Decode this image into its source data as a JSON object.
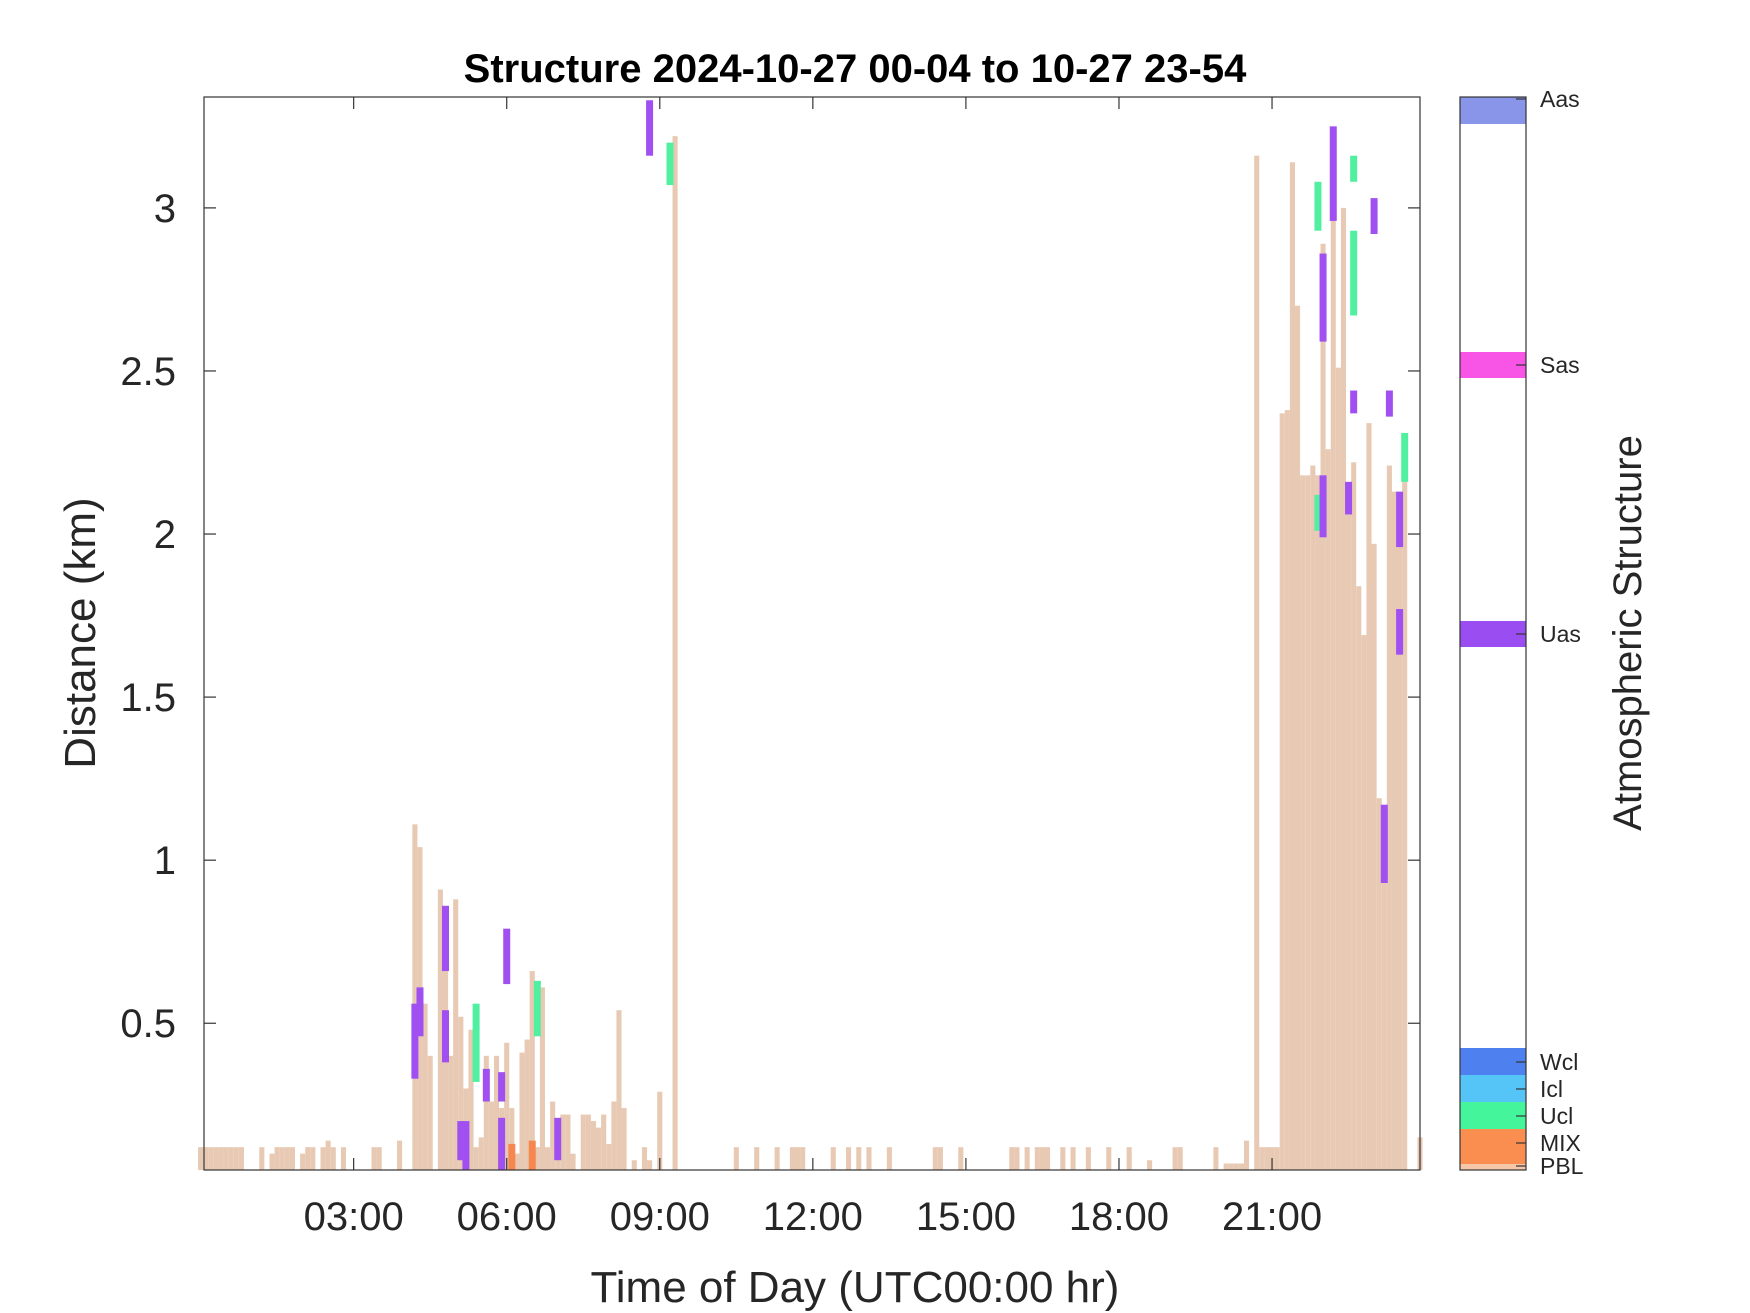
{
  "chart_data": {
    "type": "bar",
    "title": "Structure 2024-10-27 00-04 to 10-27 23-54",
    "xlabel": "Time of Day (UTC00:00 hr)",
    "ylabel": "Distance (km)",
    "xlim": [
      "00:04",
      "23:54"
    ],
    "ylim": [
      0.05,
      3.34
    ],
    "grid": false,
    "x_ticks": [
      "03:00",
      "06:00",
      "09:00",
      "12:00",
      "15:00",
      "18:00",
      "21:00"
    ],
    "y_ticks": [
      "0.5",
      "1",
      "1.5",
      "2",
      "2.5",
      "3"
    ],
    "x_unit": "hours of day",
    "pbl_height_km": [
      [
        0.0,
        0.12
      ],
      [
        0.1,
        0.12
      ],
      [
        0.2,
        0.12
      ],
      [
        0.3,
        0.12
      ],
      [
        0.4,
        0.12
      ],
      [
        0.5,
        0.12
      ],
      [
        0.6,
        0.12
      ],
      [
        0.7,
        0.12
      ],
      [
        0.8,
        0.12
      ],
      [
        1.2,
        0.12
      ],
      [
        1.4,
        0.1
      ],
      [
        1.5,
        0.12
      ],
      [
        1.6,
        0.12
      ],
      [
        1.7,
        0.12
      ],
      [
        1.8,
        0.12
      ],
      [
        2.0,
        0.1
      ],
      [
        2.1,
        0.12
      ],
      [
        2.2,
        0.12
      ],
      [
        2.4,
        0.12
      ],
      [
        2.5,
        0.14
      ],
      [
        2.6,
        0.12
      ],
      [
        2.8,
        0.12
      ],
      [
        3.4,
        0.12
      ],
      [
        3.5,
        0.12
      ],
      [
        3.9,
        0.14
      ],
      [
        4.2,
        1.11
      ],
      [
        4.3,
        1.04
      ],
      [
        4.4,
        0.56
      ],
      [
        4.5,
        0.4
      ],
      [
        4.7,
        0.91
      ],
      [
        4.8,
        0.86
      ],
      [
        4.9,
        0.4
      ],
      [
        5.0,
        0.88
      ],
      [
        5.1,
        0.52
      ],
      [
        5.2,
        0.3
      ],
      [
        5.3,
        0.48
      ],
      [
        5.4,
        0.12
      ],
      [
        5.5,
        0.15
      ],
      [
        5.6,
        0.4
      ],
      [
        5.7,
        0.26
      ],
      [
        5.8,
        0.4
      ],
      [
        5.9,
        0.24
      ],
      [
        6.0,
        0.44
      ],
      [
        6.1,
        0.24
      ],
      [
        6.2,
        0.1
      ],
      [
        6.3,
        0.41
      ],
      [
        6.4,
        0.45
      ],
      [
        6.5,
        0.66
      ],
      [
        6.6,
        0.12
      ],
      [
        6.7,
        0.61
      ],
      [
        6.8,
        0.12
      ],
      [
        6.9,
        0.26
      ],
      [
        7.0,
        0.12
      ],
      [
        7.1,
        0.22
      ],
      [
        7.2,
        0.22
      ],
      [
        7.3,
        0.1
      ],
      [
        7.5,
        0.22
      ],
      [
        7.6,
        0.22
      ],
      [
        7.7,
        0.2
      ],
      [
        7.8,
        0.18
      ],
      [
        7.9,
        0.22
      ],
      [
        8.0,
        0.13
      ],
      [
        8.1,
        0.26
      ],
      [
        8.2,
        0.54
      ],
      [
        8.3,
        0.24
      ],
      [
        8.5,
        0.08
      ],
      [
        8.7,
        0.12
      ],
      [
        8.8,
        0.08
      ],
      [
        9.0,
        0.29
      ],
      [
        9.3,
        3.22
      ],
      [
        10.5,
        0.12
      ],
      [
        10.9,
        0.12
      ],
      [
        11.3,
        0.12
      ],
      [
        11.6,
        0.12
      ],
      [
        11.7,
        0.12
      ],
      [
        11.8,
        0.12
      ],
      [
        12.4,
        0.12
      ],
      [
        12.7,
        0.12
      ],
      [
        12.9,
        0.12
      ],
      [
        13.1,
        0.12
      ],
      [
        13.5,
        0.12
      ],
      [
        14.4,
        0.12
      ],
      [
        14.5,
        0.12
      ],
      [
        14.9,
        0.12
      ],
      [
        15.9,
        0.12
      ],
      [
        16.0,
        0.12
      ],
      [
        16.2,
        0.12
      ],
      [
        16.4,
        0.12
      ],
      [
        16.5,
        0.12
      ],
      [
        16.6,
        0.12
      ],
      [
        16.9,
        0.12
      ],
      [
        17.1,
        0.12
      ],
      [
        17.4,
        0.12
      ],
      [
        17.8,
        0.12
      ],
      [
        18.2,
        0.12
      ],
      [
        18.6,
        0.08
      ],
      [
        19.1,
        0.12
      ],
      [
        19.2,
        0.12
      ],
      [
        19.9,
        0.12
      ],
      [
        20.1,
        0.07
      ],
      [
        20.2,
        0.07
      ],
      [
        20.3,
        0.07
      ],
      [
        20.4,
        0.07
      ],
      [
        20.5,
        0.14
      ],
      [
        20.7,
        3.16
      ],
      [
        20.8,
        0.12
      ],
      [
        20.9,
        0.12
      ],
      [
        21.0,
        0.12
      ],
      [
        21.1,
        0.12
      ],
      [
        21.2,
        2.37
      ],
      [
        21.3,
        2.38
      ],
      [
        21.4,
        3.14
      ],
      [
        21.5,
        2.7
      ],
      [
        21.6,
        2.18
      ],
      [
        21.7,
        2.18
      ],
      [
        21.8,
        2.21
      ],
      [
        21.9,
        2.18
      ],
      [
        22.0,
        2.89
      ],
      [
        22.1,
        2.26
      ],
      [
        22.2,
        3.18
      ],
      [
        22.3,
        2.51
      ],
      [
        22.4,
        3.0
      ],
      [
        22.5,
        2.06
      ],
      [
        22.6,
        2.22
      ],
      [
        22.7,
        1.84
      ],
      [
        22.8,
        1.69
      ],
      [
        22.9,
        2.34
      ],
      [
        23.0,
        1.97
      ],
      [
        23.1,
        1.19
      ],
      [
        23.2,
        1.17
      ],
      [
        23.3,
        2.21
      ],
      [
        23.4,
        2.13
      ],
      [
        23.5,
        2.08
      ],
      [
        23.6,
        2.16
      ],
      [
        23.9,
        0.15
      ]
    ],
    "mixing_layer_segments_km": [
      [
        6.1,
        0.05,
        0.13
      ],
      [
        6.5,
        0.05,
        0.14
      ]
    ],
    "uas_segments_km": [
      [
        4.2,
        0.33,
        0.56
      ],
      [
        4.3,
        0.46,
        0.61
      ],
      [
        4.8,
        0.66,
        0.86
      ],
      [
        4.8,
        0.38,
        0.54
      ],
      [
        5.1,
        0.08,
        0.2
      ],
      [
        5.2,
        0.05,
        0.2
      ],
      [
        5.6,
        0.26,
        0.36
      ],
      [
        5.9,
        0.05,
        0.21
      ],
      [
        5.9,
        0.26,
        0.35
      ],
      [
        6.0,
        0.62,
        0.79
      ],
      [
        7.0,
        0.08,
        0.21
      ],
      [
        8.8,
        3.16,
        3.33
      ],
      [
        22.0,
        1.99,
        2.18
      ],
      [
        22.0,
        2.59,
        2.86
      ],
      [
        22.2,
        2.96,
        3.25
      ],
      [
        22.5,
        2.06,
        2.16
      ],
      [
        22.6,
        2.37,
        2.44
      ],
      [
        23.0,
        2.92,
        3.03
      ],
      [
        23.2,
        0.93,
        1.17
      ],
      [
        23.3,
        2.36,
        2.44
      ],
      [
        23.5,
        1.63,
        1.77
      ],
      [
        23.5,
        1.96,
        2.13
      ]
    ],
    "ucl_segments_km": [
      [
        5.4,
        0.32,
        0.56
      ],
      [
        6.6,
        0.46,
        0.63
      ],
      [
        9.2,
        3.07,
        3.2
      ],
      [
        21.9,
        2.01,
        2.12
      ],
      [
        21.9,
        2.93,
        3.08
      ],
      [
        22.6,
        2.67,
        2.93
      ],
      [
        22.6,
        3.08,
        3.16
      ],
      [
        23.6,
        2.16,
        2.31
      ]
    ],
    "colorbar": {
      "label": "Atmospheric Structure",
      "categories": [
        {
          "name": "PBL",
          "color": "#f5c6a8"
        },
        {
          "name": "MIX",
          "color": "#fa8e50"
        },
        {
          "name": "Ucl",
          "color": "#45f59b"
        },
        {
          "name": "Icl",
          "color": "#55c5f8"
        },
        {
          "name": "Wcl",
          "color": "#4f80f0"
        },
        {
          "name": "Uas",
          "color": "#9a4ef2"
        },
        {
          "name": "Sas",
          "color": "#f855e6"
        },
        {
          "name": "Aas",
          "color": "#8995e8"
        }
      ]
    },
    "colors": {
      "pbl_bar": "#e8cab4",
      "mix": "#f5874f",
      "uas": "#a050f0",
      "ucl": "#50f0a0"
    }
  }
}
